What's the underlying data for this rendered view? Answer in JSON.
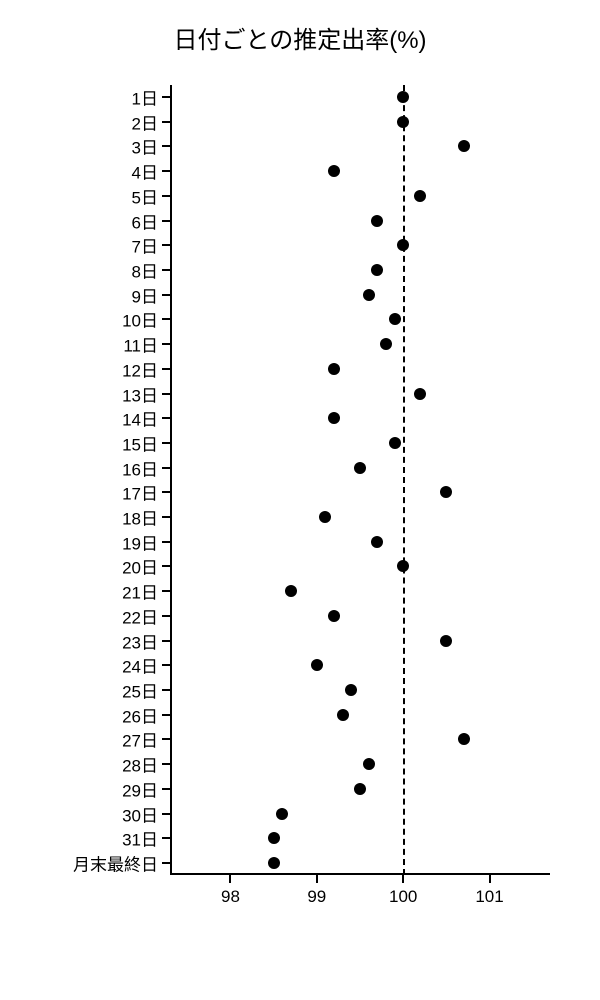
{
  "chart": {
    "type": "scatter",
    "title": "日付ごとの推定出率(%)",
    "title_fontsize": 24,
    "background_color": "#ffffff",
    "point_color": "#000000",
    "axis_color": "#000000",
    "point_radius": 6,
    "xlim": [
      97.3,
      101.7
    ],
    "xticks": [
      98,
      99,
      100,
      101
    ],
    "reference_line_x": 100,
    "reference_line_style": "dashed",
    "y_categories": [
      "1日",
      "2日",
      "3日",
      "4日",
      "5日",
      "6日",
      "7日",
      "8日",
      "9日",
      "10日",
      "11日",
      "12日",
      "13日",
      "14日",
      "15日",
      "16日",
      "17日",
      "18日",
      "19日",
      "20日",
      "21日",
      "22日",
      "23日",
      "24日",
      "25日",
      "26日",
      "27日",
      "28日",
      "29日",
      "30日",
      "31日",
      "月末最終日"
    ],
    "values": [
      100.0,
      100.0,
      100.7,
      99.2,
      100.2,
      99.7,
      100.0,
      99.7,
      99.6,
      99.9,
      99.8,
      99.2,
      100.2,
      99.2,
      99.9,
      99.5,
      100.5,
      99.1,
      99.7,
      100.0,
      98.7,
      99.2,
      100.5,
      99.0,
      99.4,
      99.3,
      100.7,
      99.6,
      99.5,
      98.6,
      98.5,
      98.5
    ],
    "label_fontsize": 17
  }
}
